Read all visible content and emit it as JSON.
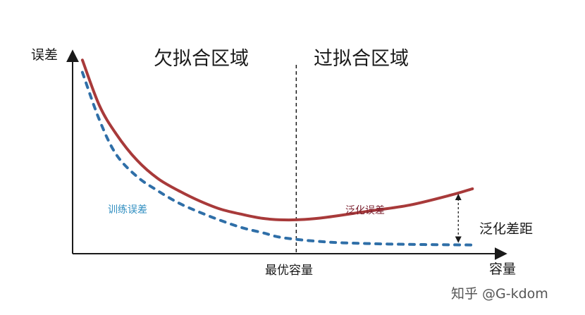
{
  "chart_data": {
    "type": "line",
    "title": "",
    "xlabel": "容量",
    "ylabel": "误差",
    "xlim": [
      0,
      10
    ],
    "ylim": [
      0,
      10
    ],
    "grid": false,
    "regions": {
      "left": "欠拟合区域",
      "right": "过拟合区域",
      "divider_x": 5.3
    },
    "optimal_label": "最优容量",
    "gap_label": "泛化差距",
    "watermark": "知乎 @G-kdom",
    "series": [
      {
        "name": "泛化误差",
        "style": "solid",
        "color": "#a83a3a",
        "x": [
          0.2,
          0.6,
          1.0,
          1.5,
          2.0,
          2.5,
          3.0,
          3.5,
          4.0,
          4.5,
          5.0,
          5.5,
          6.0,
          7.0,
          8.0,
          9.0,
          9.5
        ],
        "y": [
          9.2,
          7.0,
          5.6,
          4.3,
          3.4,
          2.8,
          2.3,
          1.9,
          1.65,
          1.45,
          1.38,
          1.4,
          1.5,
          1.8,
          2.1,
          2.6,
          2.9
        ]
      },
      {
        "name": "训练误差",
        "style": "dashed",
        "color": "#2f6fa8",
        "x": [
          0.2,
          0.6,
          1.0,
          1.5,
          2.0,
          2.5,
          3.0,
          3.5,
          4.0,
          4.5,
          5.0,
          6.0,
          7.0,
          8.0,
          9.0,
          9.5
        ],
        "y": [
          8.6,
          6.3,
          4.6,
          3.5,
          2.8,
          2.2,
          1.75,
          1.35,
          1.0,
          0.75,
          0.5,
          0.3,
          0.22,
          0.18,
          0.16,
          0.15
        ]
      }
    ],
    "colors": {
      "axis": "#1a1a1a",
      "train_label": "#2f8ec0",
      "generalization_label": "#7a1f2e"
    }
  }
}
